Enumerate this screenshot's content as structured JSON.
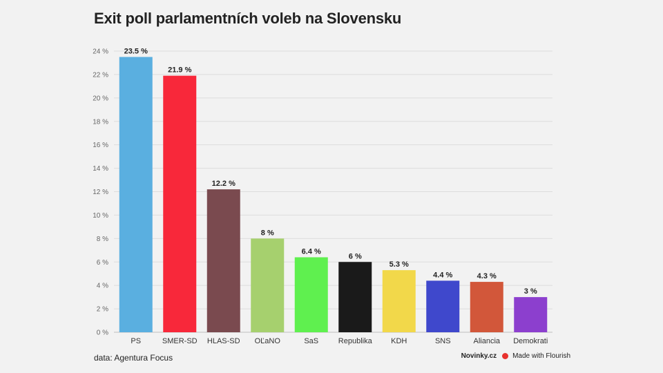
{
  "page": {
    "title": "Exit poll parlamentních voleb na Slovensku",
    "source": "data: Agentura Focus",
    "brand": "Novinky.cz",
    "flourish": "Made with Flourish"
  },
  "chart_data": {
    "type": "bar",
    "title": "Exit poll parlamentních voleb na Slovensku",
    "xlabel": "",
    "ylabel": "",
    "ylim": [
      0,
      24
    ],
    "yticks": [
      0,
      2,
      4,
      6,
      8,
      10,
      12,
      14,
      16,
      18,
      20,
      22,
      24
    ],
    "tick_suffix": " %",
    "grid": true,
    "categories": [
      "PS",
      "SMER-SD",
      "HLAS-SD",
      "OĽaNO",
      "SaS",
      "Republika",
      "KDH",
      "SNS",
      "Aliancia",
      "Demokrati"
    ],
    "values": [
      23.5,
      21.9,
      12.2,
      8,
      6.4,
      6,
      5.3,
      4.4,
      4.3,
      3
    ],
    "data_labels": [
      "23.5 %",
      "21.9 %",
      "12.2 %",
      "8 %",
      "6.4 %",
      "6 %",
      "5.3 %",
      "4.4 %",
      "4.3 %",
      "3 %"
    ],
    "colors": [
      "#5aafe0",
      "#f8283a",
      "#7a4a4f",
      "#a6d06e",
      "#5ff04f",
      "#1a1a1a",
      "#f2d84a",
      "#3f48cc",
      "#d2573a",
      "#8c3fce"
    ]
  }
}
